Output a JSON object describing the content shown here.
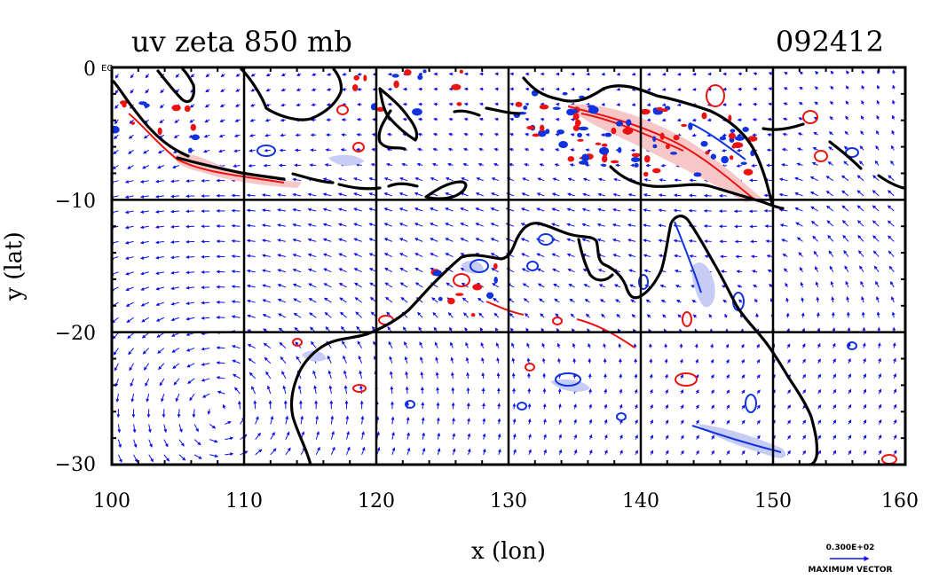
{
  "title_left": "uv zeta 850 mb",
  "title_right": "092412",
  "xlabel": "x (lon)",
  "ylabel": "y (lat)",
  "eq_label": "EQ",
  "x_ticks": [
    "100",
    "110",
    "120",
    "130",
    "140",
    "150",
    "160"
  ],
  "y_ticks": [
    "0",
    "−10",
    "−20",
    "−30"
  ],
  "vector_legend": {
    "magnitude": "0.300E+02",
    "label": "MAXIMUM VECTOR"
  },
  "colors": {
    "vectors": "#1010ee",
    "positive_vorticity": "#ee1111",
    "negative_vorticity": "#1133dd",
    "shade_positive": "#f7c6c6",
    "shade_negative": "#c6ccf3",
    "coast": "#000000"
  },
  "map": {
    "lon_range": [
      100,
      160
    ],
    "lat_range": [
      -30,
      0
    ],
    "grid_lon": [
      110,
      120,
      130,
      140,
      150
    ],
    "grid_lat": [
      -10,
      -20
    ]
  }
}
